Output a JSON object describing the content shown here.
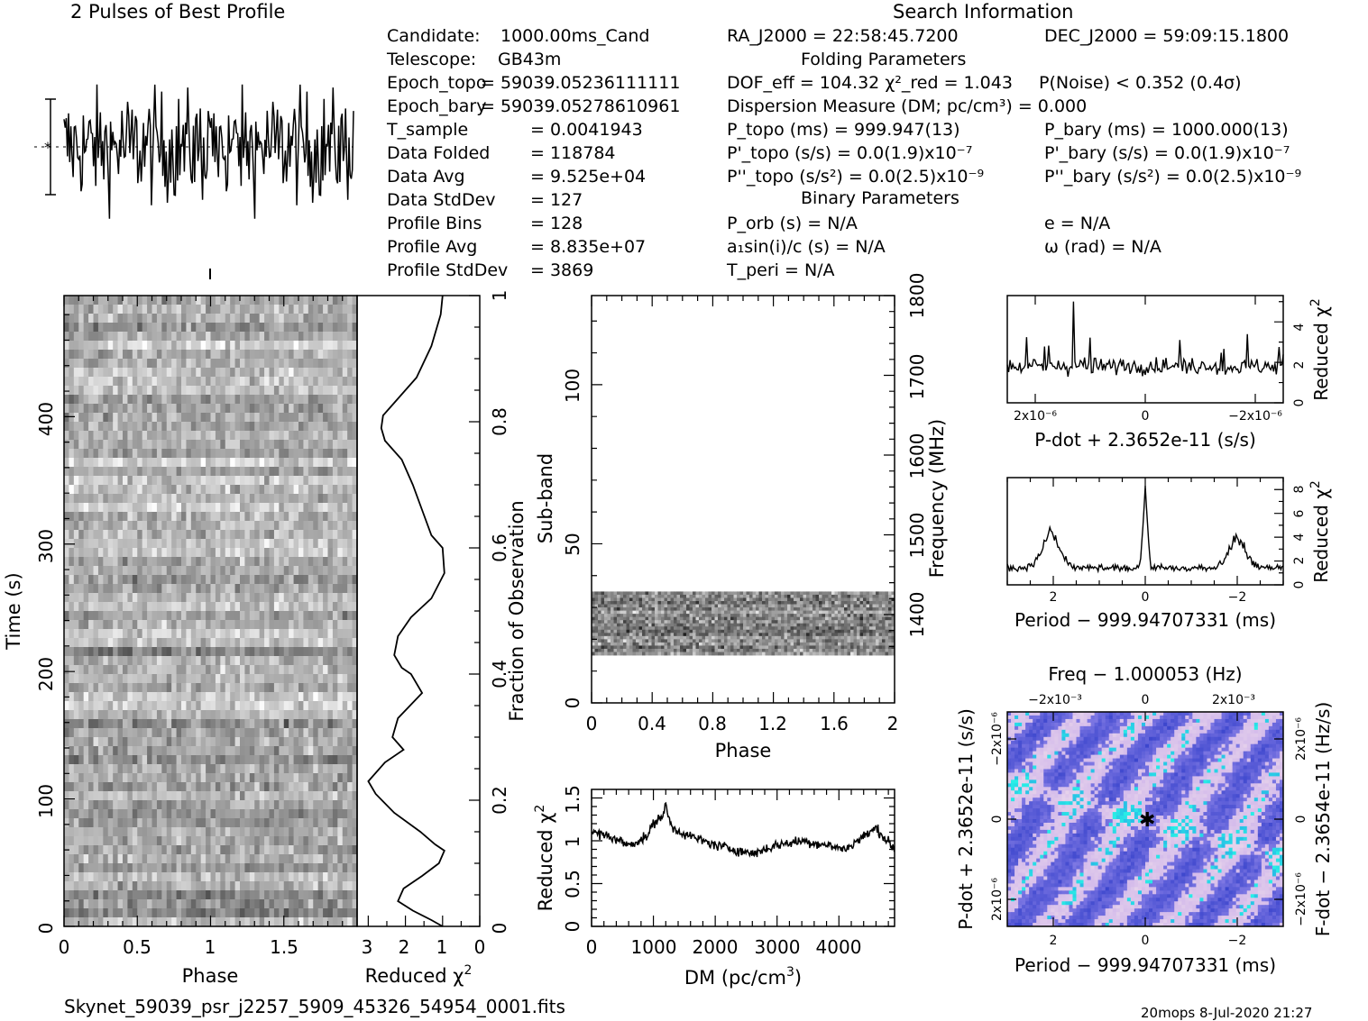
{
  "header": {
    "profile_title": "2 Pulses of Best Profile",
    "search_title": "Search Information",
    "folding_title": "Folding Parameters",
    "binary_title": "Binary Parameters"
  },
  "candidate_info": [
    {
      "label": "Candidate:",
      "value": "1000.00ms_Cand"
    },
    {
      "label": "Telescope:",
      "value": "GB43m"
    },
    {
      "label": "Epoch_topo",
      "value": "= 59039.05236111111"
    },
    {
      "label": "Epoch_bary",
      "value": "= 59039.05278610961"
    },
    {
      "label": "T_sample",
      "value": "= 0.0041943"
    },
    {
      "label": "Data Folded",
      "value": "= 118784"
    },
    {
      "label": "Data Avg",
      "value": "= 9.525e+04"
    },
    {
      "label": "Data StdDev",
      "value": "= 127"
    },
    {
      "label": "Profile Bins",
      "value": "= 128"
    },
    {
      "label": "Profile Avg",
      "value": "= 8.835e+07"
    },
    {
      "label": "Profile StdDev",
      "value": "= 3869"
    }
  ],
  "search_info": {
    "ra": "RA_J2000 = 22:58:45.7200",
    "dec": "DEC_J2000 = 59:09:15.1800",
    "dof": "DOF_eff = 104.32  χ²_red = 1.043",
    "pnoise": "P(Noise) < 0.352   (0.4σ)",
    "dm": "Dispersion Measure (DM; pc/cm³) = 0.000",
    "p_topo": "P_topo (ms) =  999.947(13)",
    "p_bary": "P_bary (ms) =  1000.000(13)",
    "pd_topo": "P'_topo (s/s) = 0.0(1.9)x10⁻⁷",
    "pd_bary": "P'_bary (s/s) = 0.0(1.9)x10⁻⁷",
    "pdd_topo": "P''_topo (s/s²) = 0.0(2.5)x10⁻⁹",
    "pdd_bary": "P''_bary (s/s²) = 0.0(2.5)x10⁻⁹",
    "p_orb": "P_orb (s) = N/A",
    "ecc": "e = N/A",
    "a1sini": "a₁sin(i)/c (s) = N/A",
    "omega": "ω (rad) = N/A",
    "t_peri": "T_peri = N/A"
  },
  "footer": {
    "filename": "Skynet_59039_psr_j2257_5909_45326_54954_0001.fits",
    "stamp": "20mops   8-Jul-2020 21:27"
  },
  "chart_data": [
    {
      "id": "profile",
      "type": "line",
      "title": "2 Pulses of Best Profile",
      "xlim": [
        0,
        2
      ],
      "note": "noisy pulse profile, no detectable pulse"
    },
    {
      "id": "time_phase",
      "type": "heatmap",
      "xlabel": "Phase",
      "ylabel": "Time (s)",
      "xticks": [
        "0",
        "0.5",
        "1",
        "1.5"
      ],
      "yticks": [
        "0",
        "100",
        "200",
        "300",
        "400"
      ],
      "xlim": [
        0,
        2
      ],
      "ylim": [
        0,
        495
      ],
      "colormap": "grayscale"
    },
    {
      "id": "time_chi2",
      "type": "line",
      "xlabel": "Reduced χ²",
      "ylabel": "Fraction of Observation",
      "xticks": [
        "3",
        "2",
        "1",
        "0"
      ],
      "yticks": [
        "0",
        "0.2",
        "0.4",
        "0.6",
        "0.8",
        "1"
      ],
      "xlim": [
        3.3,
        0
      ],
      "ylim": [
        0,
        1
      ],
      "points": [
        [
          1.0,
          1.0
        ],
        [
          1.05,
          0.97
        ],
        [
          1.3,
          0.92
        ],
        [
          1.7,
          0.87
        ],
        [
          2.3,
          0.83
        ],
        [
          2.6,
          0.81
        ],
        [
          2.65,
          0.79
        ],
        [
          2.55,
          0.77
        ],
        [
          2.1,
          0.74
        ],
        [
          1.8,
          0.7
        ],
        [
          1.55,
          0.66
        ],
        [
          1.3,
          0.62
        ],
        [
          1.0,
          0.6
        ],
        [
          0.95,
          0.56
        ],
        [
          1.3,
          0.52
        ],
        [
          1.85,
          0.49
        ],
        [
          2.2,
          0.46
        ],
        [
          2.3,
          0.43
        ],
        [
          2.1,
          0.41
        ],
        [
          1.85,
          0.4
        ],
        [
          1.55,
          0.37
        ],
        [
          2.2,
          0.33
        ],
        [
          2.35,
          0.3
        ],
        [
          2.05,
          0.28
        ],
        [
          2.55,
          0.26
        ],
        [
          3.0,
          0.23
        ],
        [
          2.8,
          0.21
        ],
        [
          2.3,
          0.18
        ],
        [
          1.6,
          0.15
        ],
        [
          1.2,
          0.13
        ],
        [
          0.95,
          0.12
        ],
        [
          1.1,
          0.1
        ],
        [
          1.55,
          0.08
        ],
        [
          2.05,
          0.06
        ],
        [
          2.2,
          0.04
        ],
        [
          1.8,
          0.025
        ],
        [
          1.3,
          0.01
        ],
        [
          1.0,
          0.0
        ]
      ]
    },
    {
      "id": "subband_phase",
      "type": "heatmap",
      "xlabel": "Phase",
      "ylabel": "Sub-band",
      "y2label": "Frequency (MHz)",
      "xticks": [
        "0",
        "0.4",
        "0.8",
        "1.2",
        "1.6",
        "2"
      ],
      "yticks": [
        "0",
        "50",
        "100"
      ],
      "y2ticks": [
        "1400",
        "1500",
        "1600",
        "1700",
        "1800"
      ],
      "xlim": [
        0,
        2
      ],
      "ylim": [
        0,
        128
      ],
      "filled_subbands": [
        15,
        35
      ],
      "colormap": "grayscale"
    },
    {
      "id": "dm_chi2",
      "type": "line",
      "xlabel": "DM (pc/cm³)",
      "ylabel": "Reduced χ²",
      "xticks": [
        "0",
        "1000",
        "2000",
        "3000",
        "4000"
      ],
      "yticks": [
        "0",
        "0.5",
        "1",
        "1.5"
      ],
      "xlim": [
        0,
        4900
      ],
      "ylim": [
        0,
        1.6
      ],
      "points": [
        [
          0,
          1.1
        ],
        [
          300,
          1.05
        ],
        [
          600,
          0.95
        ],
        [
          900,
          1.05
        ],
        [
          1000,
          1.2
        ],
        [
          1150,
          1.3
        ],
        [
          1200,
          1.4
        ],
        [
          1300,
          1.15
        ],
        [
          1600,
          1.05
        ],
        [
          2000,
          0.95
        ],
        [
          2300,
          0.9
        ],
        [
          2600,
          0.85
        ],
        [
          3000,
          0.95
        ],
        [
          3400,
          1.0
        ],
        [
          3800,
          0.95
        ],
        [
          4100,
          0.9
        ],
        [
          4300,
          1.0
        ],
        [
          4600,
          1.15
        ],
        [
          4900,
          0.9
        ]
      ]
    },
    {
      "id": "pdot_chi2",
      "type": "line",
      "xlabel": "P-dot + 2.3652e-11 (s/s)",
      "ylabel": "Reduced χ²",
      "xticks": [
        "2x10⁻⁶",
        "0",
        "−2x10⁻⁶"
      ],
      "yticks": [
        "0",
        "2",
        "4"
      ],
      "ylim": [
        0,
        5.3
      ],
      "peak": {
        "x_frac": 0.24,
        "y": 5.0
      }
    },
    {
      "id": "period_chi2",
      "type": "line",
      "xlabel": "Period − 999.94707331 (ms)",
      "ylabel": "Reduced χ²",
      "xticks": [
        "2",
        "0",
        "−2"
      ],
      "yticks": [
        "0",
        "2",
        "4",
        "6",
        "8"
      ],
      "xlim": [
        3,
        -3
      ],
      "ylim": [
        0,
        9
      ],
      "peaks": [
        {
          "x": 2.05,
          "y": 4.5
        },
        {
          "x": 0.0,
          "y": 8.5
        },
        {
          "x": -2.0,
          "y": 4.2
        }
      ]
    },
    {
      "id": "ppdot_plane",
      "type": "heatmap",
      "xlabel": "Period − 999.94707331 (ms)",
      "x2label": "Freq − 1.000053 (Hz)",
      "ylabel": "P-dot + 2.3652e-11 (s/s)",
      "y2label": "F-dot − 2.3654e-11 (Hz/s)",
      "xticks": [
        "2",
        "0",
        "−2"
      ],
      "x2ticks": [
        "−2x10⁻³",
        "0",
        "2x10⁻³"
      ],
      "yticks": [
        "2x10⁻⁶",
        "0",
        "−2x10⁻⁶"
      ],
      "y2ticks": [
        "−2x10⁻⁶",
        "0",
        "2x10⁻⁶"
      ],
      "colormap": "blue-purple"
    }
  ]
}
